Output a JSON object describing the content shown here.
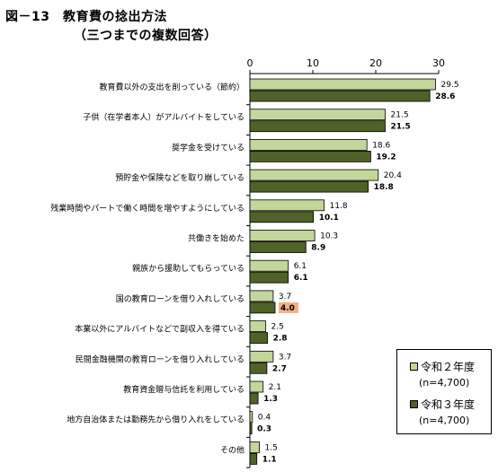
{
  "title": "図－13　教育費の捻出方法",
  "subtitle": "（三つまでの複数回答）",
  "colors": {
    "series1": "#c3d69b",
    "series2": "#4f6228",
    "highlight_bg": "#f4b183"
  },
  "legend": [
    {
      "name": "令和２年度",
      "n": "(n=4,700)"
    },
    {
      "name": "令和３年度",
      "n": "(n=4,700)"
    }
  ],
  "chart_data": {
    "type": "bar",
    "orientation": "horizontal",
    "xlim": [
      0,
      30
    ],
    "xticks": [
      0,
      10,
      20,
      30
    ],
    "categories": [
      "教育費以外の支出を削っている（節約）",
      "子供（在学者本人）がアルバイトをしている",
      "奨学金を受けている",
      "預貯金や保険などを取り崩している",
      "残業時間やパートで働く時間を増やすようにしている",
      "共働きを始めた",
      "親族から援助してもらっている",
      "国の教育ローンを借り入れしている",
      "本業以外にアルバイトなどで副収入を得ている",
      "民間金融機関の教育ローンを借り入れしている",
      "教育資金贈与信託を利用している",
      "地方自治体または勤務先から借り入れをしている",
      "その他"
    ],
    "series": [
      {
        "name": "令和２年度",
        "values": [
          29.5,
          21.5,
          18.6,
          20.4,
          11.8,
          10.3,
          6.1,
          3.7,
          2.5,
          3.7,
          2.1,
          0.4,
          1.5
        ]
      },
      {
        "name": "令和３年度",
        "values": [
          28.6,
          21.5,
          19.2,
          18.8,
          10.1,
          8.9,
          6.1,
          4.0,
          2.8,
          2.7,
          1.3,
          0.3,
          1.1
        ]
      }
    ],
    "highlighted_labels": [
      {
        "series": 1,
        "category": 7
      }
    ],
    "legend_position": "bottom-right",
    "grid": false
  }
}
